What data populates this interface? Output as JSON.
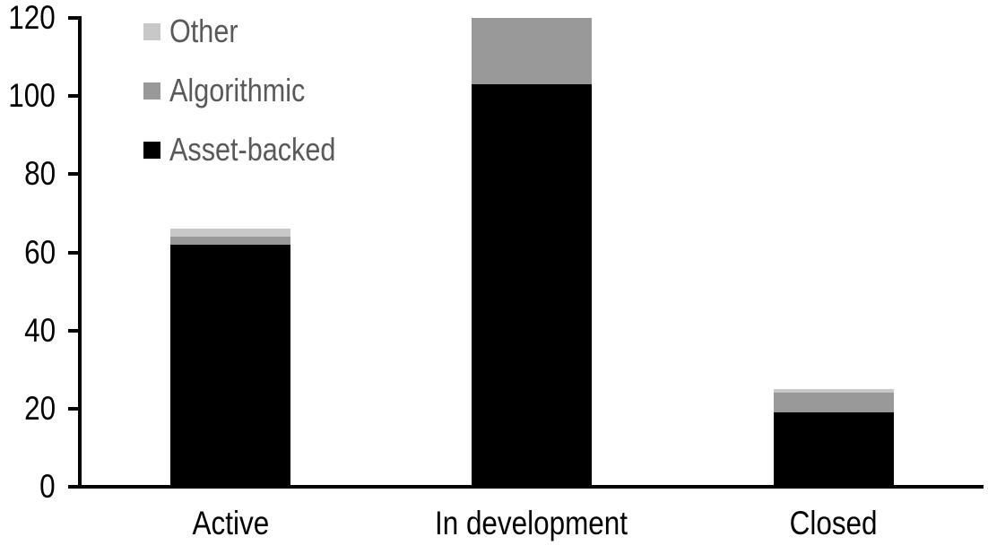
{
  "figure": {
    "background": "#ffffff",
    "axis_color": "#000000",
    "tick_label_color": "#000000",
    "category_label_color": "#000000",
    "legend_text_color": "#595959"
  },
  "chart_data": {
    "type": "bar",
    "stacked": true,
    "title": "",
    "xlabel": "",
    "ylabel": "",
    "categories": [
      "Active",
      "In development",
      "Closed"
    ],
    "series": [
      {
        "name": "Asset-backed",
        "color": "#000000",
        "values": [
          62,
          103,
          19
        ]
      },
      {
        "name": "Algorithmic",
        "color": "#999999",
        "values": [
          2,
          17,
          5
        ]
      },
      {
        "name": "Other",
        "color": "#c8c8c8",
        "values": [
          2,
          0,
          1
        ]
      }
    ],
    "totals": [
      66,
      120,
      25
    ],
    "ylim": [
      0,
      120
    ],
    "yticks": [
      0,
      20,
      40,
      60,
      80,
      100,
      120
    ],
    "grid": false,
    "legend": {
      "position": "top-left",
      "items": [
        {
          "label": "Other",
          "color": "#c8c8c8"
        },
        {
          "label": "Algorithmic",
          "color": "#999999"
        },
        {
          "label": "Asset-backed",
          "color": "#000000"
        }
      ]
    }
  }
}
